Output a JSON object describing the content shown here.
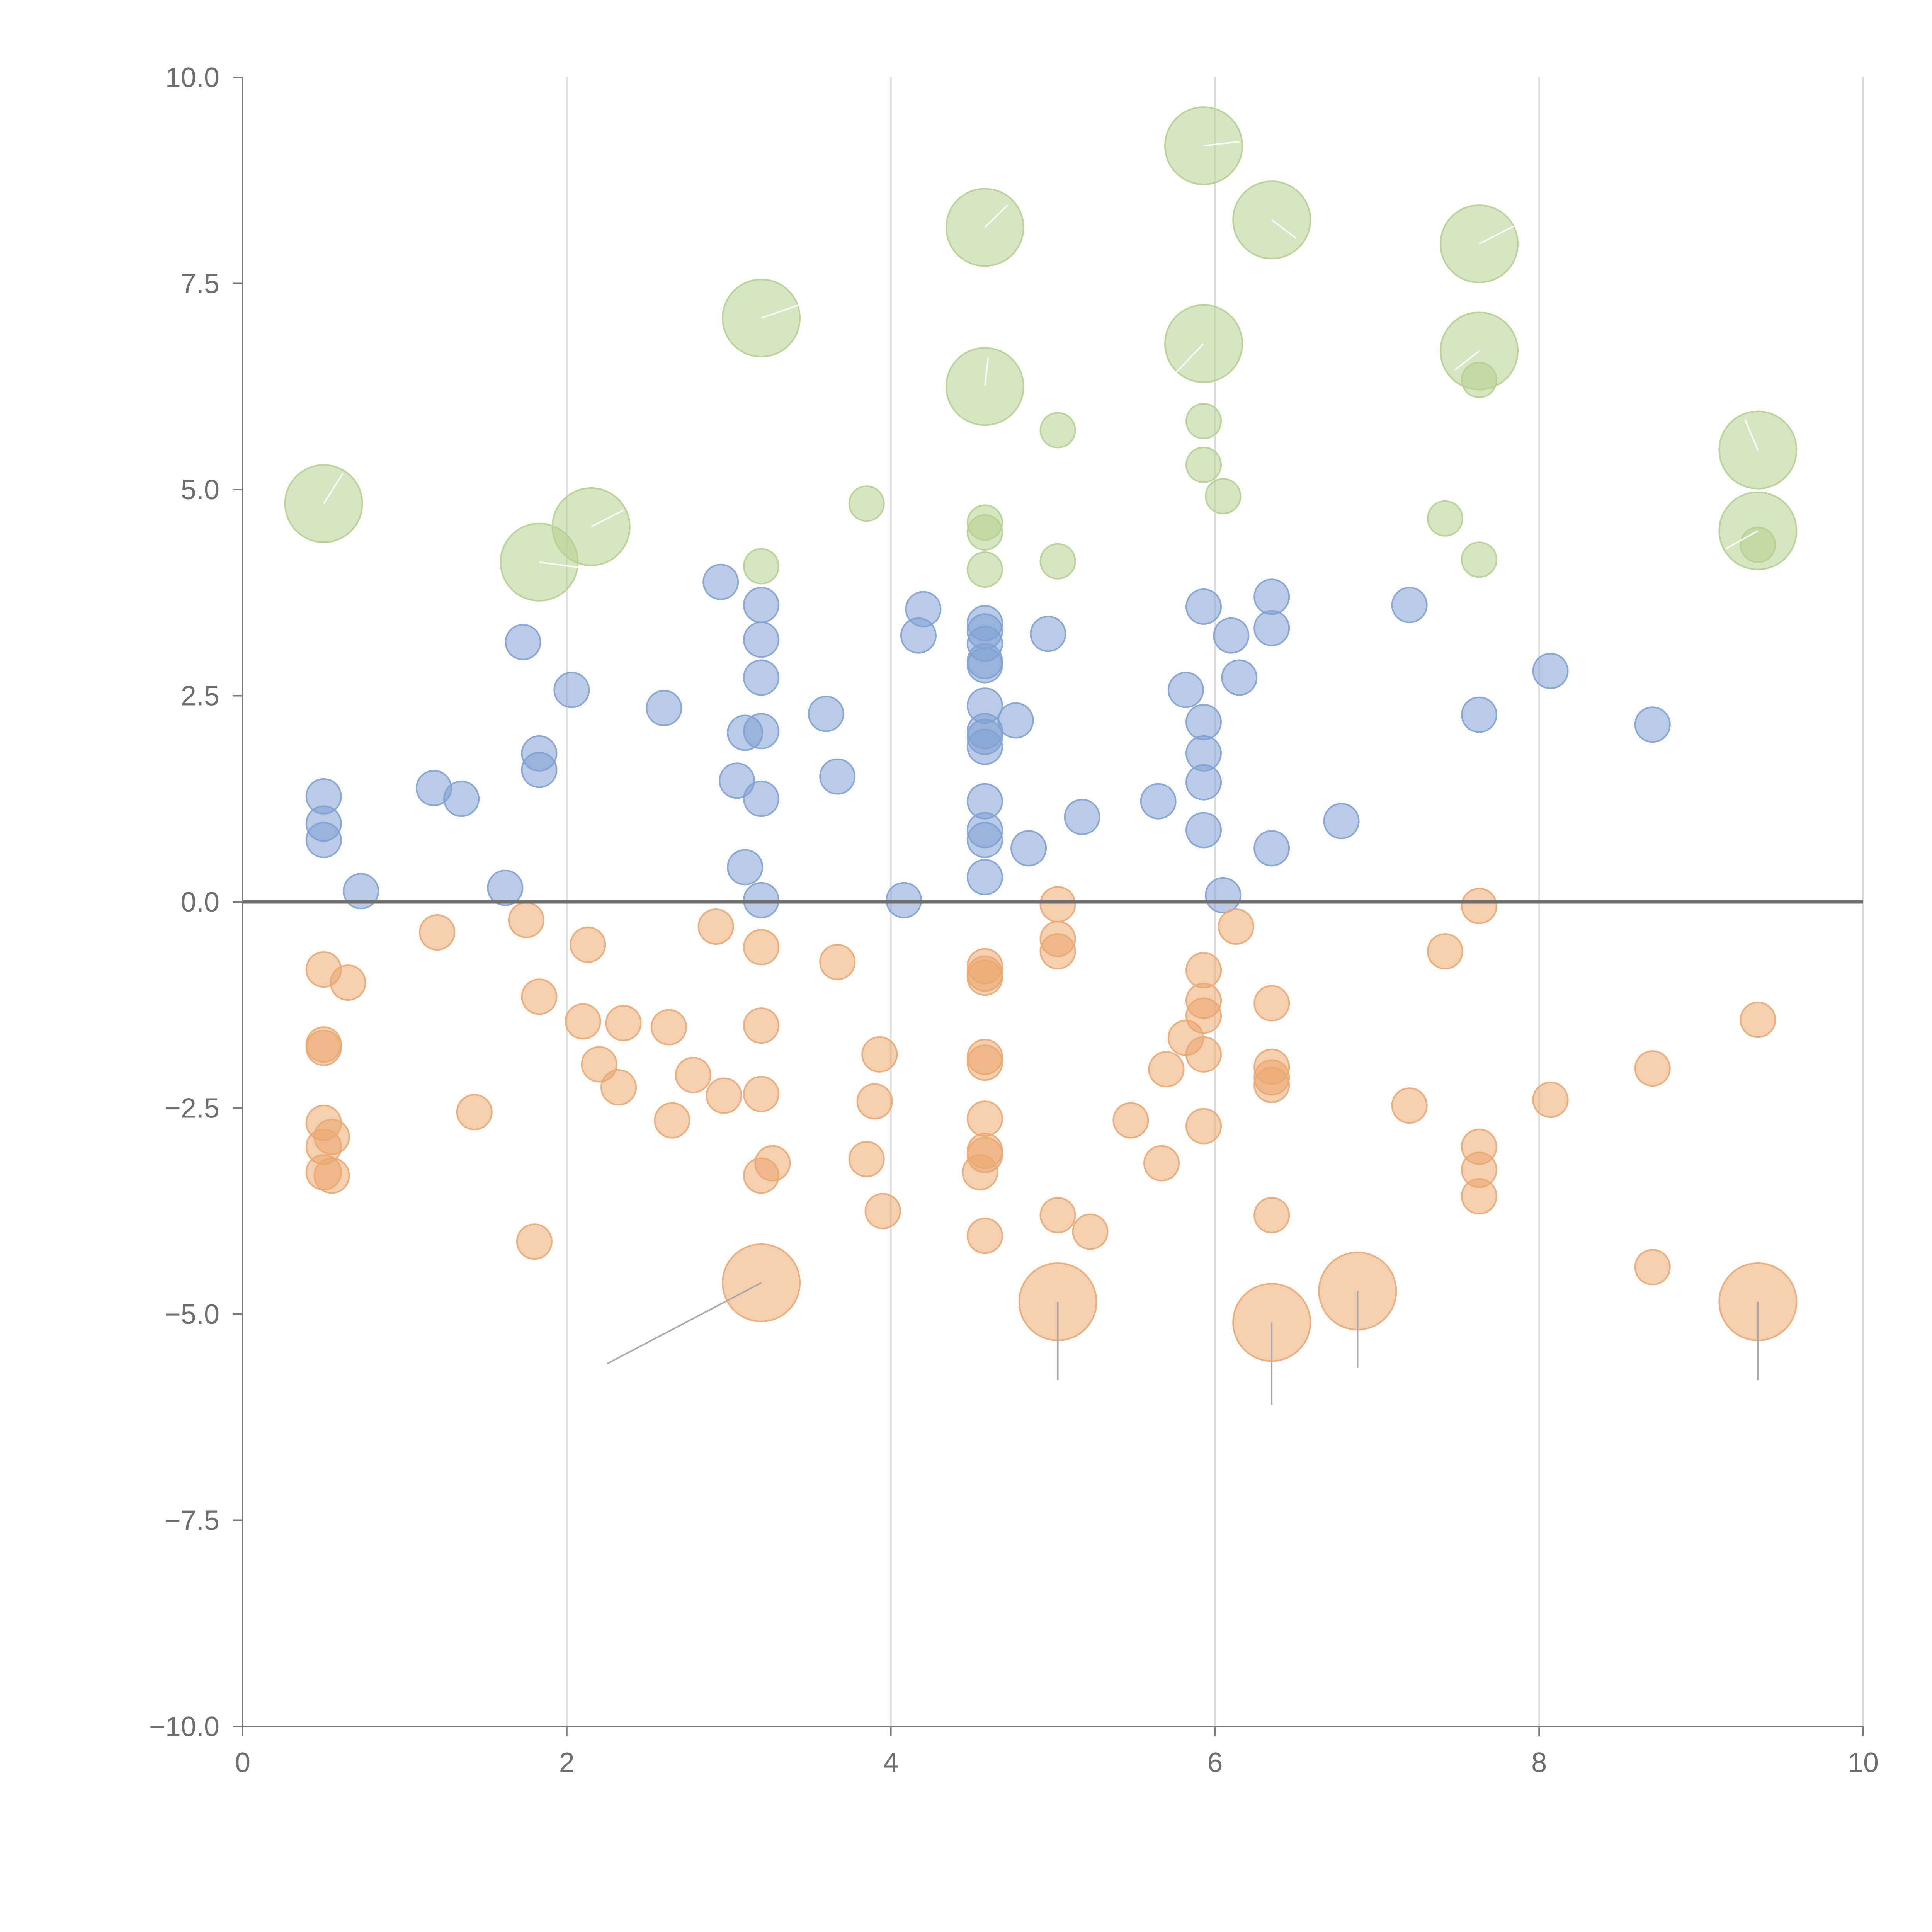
{
  "chart_data": {
    "type": "scatter",
    "title": "",
    "xlabel": "",
    "ylabel": "",
    "xlim": [
      0,
      10
    ],
    "ylim": [
      -10,
      10
    ],
    "x_ticks": [
      0,
      2,
      4,
      6,
      8,
      10
    ],
    "y_ticks": [
      10,
      7.5,
      5,
      2.5,
      0,
      -2.5,
      -5,
      -7.5,
      -10
    ],
    "x_tick_labels": [
      "0",
      "2",
      "4",
      "6",
      "8",
      "10"
    ],
    "y_tick_labels": [
      "10.0",
      "7.5",
      "5.0",
      "2.5",
      "0.0",
      "−2.5",
      "−5.0",
      "−7.5",
      "−10.0"
    ],
    "vertical_grid": true,
    "zero_line": true,
    "legend": "none",
    "series": [
      {
        "name": "blue",
        "color": "#7fa1d4",
        "points": [
          [
            0.5,
            1.28,
            1
          ],
          [
            0.5,
            0.95,
            1
          ],
          [
            0.5,
            0.75,
            1
          ],
          [
            0.73,
            0.13,
            1
          ],
          [
            1.18,
            1.38,
            1
          ],
          [
            1.35,
            1.25,
            1
          ],
          [
            1.62,
            0.17,
            1
          ],
          [
            1.73,
            3.15,
            1
          ],
          [
            1.83,
            1.8,
            1
          ],
          [
            1.83,
            1.6,
            1
          ],
          [
            2.03,
            2.57,
            1
          ],
          [
            2.6,
            2.35,
            1
          ],
          [
            2.95,
            3.88,
            1
          ],
          [
            3.05,
            1.47,
            1
          ],
          [
            3.1,
            2.05,
            1
          ],
          [
            3.1,
            0.42,
            1
          ],
          [
            3.2,
            3.6,
            1
          ],
          [
            3.2,
            3.18,
            1
          ],
          [
            3.2,
            2.72,
            1
          ],
          [
            3.2,
            2.07,
            1
          ],
          [
            3.2,
            1.25,
            1
          ],
          [
            3.2,
            0.02,
            1
          ],
          [
            3.6,
            2.28,
            1
          ],
          [
            3.67,
            1.52,
            1
          ],
          [
            4.08,
            0.02,
            1
          ],
          [
            4.17,
            3.23,
            1
          ],
          [
            4.2,
            3.55,
            1
          ],
          [
            4.58,
            3.38,
            1
          ],
          [
            4.58,
            3.28,
            1
          ],
          [
            4.58,
            3.13,
            1
          ],
          [
            4.58,
            2.92,
            1
          ],
          [
            4.58,
            2.87,
            1
          ],
          [
            4.58,
            2.38,
            1
          ],
          [
            4.58,
            2.07,
            1
          ],
          [
            4.58,
            2.0,
            1
          ],
          [
            4.58,
            1.88,
            1
          ],
          [
            4.58,
            1.22,
            1
          ],
          [
            4.58,
            0.87,
            1
          ],
          [
            4.58,
            0.75,
            1
          ],
          [
            4.58,
            0.3,
            1
          ],
          [
            4.77,
            2.2,
            1
          ],
          [
            4.85,
            0.65,
            1
          ],
          [
            4.97,
            3.25,
            1
          ],
          [
            5.18,
            1.03,
            1
          ],
          [
            5.65,
            1.22,
            1
          ],
          [
            5.82,
            2.57,
            1
          ],
          [
            5.93,
            3.58,
            1
          ],
          [
            5.93,
            2.18,
            1
          ],
          [
            5.93,
            1.8,
            1
          ],
          [
            5.93,
            1.45,
            1
          ],
          [
            5.93,
            0.87,
            1
          ],
          [
            6.05,
            0.08,
            1
          ],
          [
            6.1,
            3.23,
            1
          ],
          [
            6.15,
            2.72,
            1
          ],
          [
            6.35,
            3.7,
            1
          ],
          [
            6.35,
            3.32,
            1
          ],
          [
            6.35,
            0.65,
            1
          ],
          [
            6.78,
            0.98,
            1
          ],
          [
            7.2,
            3.6,
            1
          ],
          [
            7.63,
            2.27,
            1
          ],
          [
            8.07,
            2.8,
            1
          ],
          [
            8.7,
            2.15,
            1
          ]
        ]
      },
      {
        "name": "orange",
        "color": "#eba770",
        "points": [
          [
            0.5,
            -0.82,
            1
          ],
          [
            0.5,
            -1.73,
            1
          ],
          [
            0.5,
            -1.77,
            1
          ],
          [
            0.5,
            -2.68,
            1
          ],
          [
            0.5,
            -2.97,
            1
          ],
          [
            0.5,
            -3.28,
            1
          ],
          [
            0.55,
            -2.85,
            1
          ],
          [
            0.55,
            -3.32,
            1
          ],
          [
            0.65,
            -0.98,
            1
          ],
          [
            1.2,
            -0.37,
            1
          ],
          [
            1.43,
            -2.55,
            1
          ],
          [
            1.75,
            -0.22,
            1
          ],
          [
            1.8,
            -4.12,
            1
          ],
          [
            1.83,
            -1.15,
            1
          ],
          [
            2.1,
            -1.45,
            1
          ],
          [
            2.13,
            -0.52,
            1
          ],
          [
            2.2,
            -1.97,
            1
          ],
          [
            2.32,
            -2.25,
            1
          ],
          [
            2.35,
            -1.47,
            1
          ],
          [
            2.63,
            -1.52,
            1
          ],
          [
            2.65,
            -2.65,
            1
          ],
          [
            2.78,
            -2.1,
            1
          ],
          [
            2.92,
            -0.3,
            1
          ],
          [
            2.97,
            -2.35,
            1
          ],
          [
            3.2,
            -0.55,
            1
          ],
          [
            3.2,
            -1.5,
            1
          ],
          [
            3.2,
            -2.33,
            1
          ],
          [
            3.2,
            -3.32,
            1
          ],
          [
            3.27,
            -3.17,
            1
          ],
          [
            3.2,
            -4.62,
            3
          ],
          [
            3.67,
            -0.73,
            1
          ],
          [
            3.85,
            -3.12,
            1
          ],
          [
            3.9,
            -2.42,
            1
          ],
          [
            3.93,
            -1.85,
            1
          ],
          [
            3.95,
            -3.75,
            1
          ],
          [
            4.58,
            -0.78,
            1
          ],
          [
            4.58,
            -0.87,
            1
          ],
          [
            4.58,
            -0.92,
            1
          ],
          [
            4.58,
            -1.88,
            1
          ],
          [
            4.58,
            -1.95,
            1
          ],
          [
            4.58,
            -2.63,
            1
          ],
          [
            4.58,
            -3.02,
            1
          ],
          [
            4.58,
            -3.07,
            1
          ],
          [
            4.58,
            -4.05,
            1
          ],
          [
            4.55,
            -3.28,
            1
          ],
          [
            5.03,
            -0.03,
            1
          ],
          [
            5.03,
            -0.45,
            1
          ],
          [
            5.03,
            -0.6,
            1
          ],
          [
            5.03,
            -3.8,
            1
          ],
          [
            5.03,
            -4.85,
            3
          ],
          [
            5.23,
            -4.0,
            1
          ],
          [
            5.48,
            -2.65,
            1
          ],
          [
            5.67,
            -3.17,
            1
          ],
          [
            5.7,
            -2.03,
            1
          ],
          [
            5.82,
            -1.65,
            1
          ],
          [
            5.93,
            -0.83,
            1
          ],
          [
            5.93,
            -1.2,
            1
          ],
          [
            5.93,
            -1.38,
            1
          ],
          [
            5.93,
            -1.85,
            1
          ],
          [
            5.93,
            -2.72,
            1
          ],
          [
            6.13,
            -0.3,
            1
          ],
          [
            6.35,
            -1.23,
            1
          ],
          [
            6.35,
            -2.0,
            1
          ],
          [
            6.35,
            -2.13,
            1
          ],
          [
            6.35,
            -2.22,
            1
          ],
          [
            6.35,
            -3.8,
            1
          ],
          [
            6.35,
            -5.1,
            3
          ],
          [
            6.88,
            -4.72,
            3
          ],
          [
            7.2,
            -2.47,
            1
          ],
          [
            7.42,
            -0.6,
            1
          ],
          [
            7.63,
            -0.05,
            1
          ],
          [
            7.63,
            -2.97,
            1
          ],
          [
            7.63,
            -3.25,
            1
          ],
          [
            7.63,
            -3.57,
            1
          ],
          [
            8.07,
            -2.4,
            1
          ],
          [
            8.7,
            -2.02,
            1
          ],
          [
            8.7,
            -4.43,
            1
          ],
          [
            9.35,
            -1.43,
            1
          ],
          [
            9.35,
            -4.85,
            3
          ]
        ]
      },
      {
        "name": "green",
        "color": "#b5d08f",
        "points": [
          [
            0.5,
            4.83,
            3
          ],
          [
            1.83,
            4.12,
            3
          ],
          [
            2.15,
            4.55,
            3
          ],
          [
            3.2,
            4.07,
            1
          ],
          [
            3.2,
            7.08,
            3
          ],
          [
            3.85,
            4.83,
            1
          ],
          [
            4.58,
            8.18,
            3
          ],
          [
            4.58,
            6.25,
            3
          ],
          [
            4.58,
            4.6,
            1
          ],
          [
            4.58,
            4.48,
            1
          ],
          [
            4.58,
            4.03,
            1
          ],
          [
            5.03,
            5.72,
            1
          ],
          [
            5.03,
            4.13,
            1
          ],
          [
            5.93,
            9.17,
            3
          ],
          [
            5.93,
            6.77,
            3
          ],
          [
            5.93,
            5.83,
            1
          ],
          [
            5.93,
            5.3,
            1
          ],
          [
            6.05,
            4.92,
            1
          ],
          [
            6.35,
            8.27,
            3
          ],
          [
            7.42,
            4.65,
            1
          ],
          [
            7.63,
            7.98,
            3
          ],
          [
            7.63,
            6.68,
            3
          ],
          [
            7.63,
            6.33,
            1
          ],
          [
            7.63,
            4.15,
            1
          ],
          [
            9.35,
            5.48,
            3
          ],
          [
            9.35,
            4.5,
            3
          ],
          [
            9.35,
            4.33,
            1
          ]
        ]
      }
    ]
  }
}
